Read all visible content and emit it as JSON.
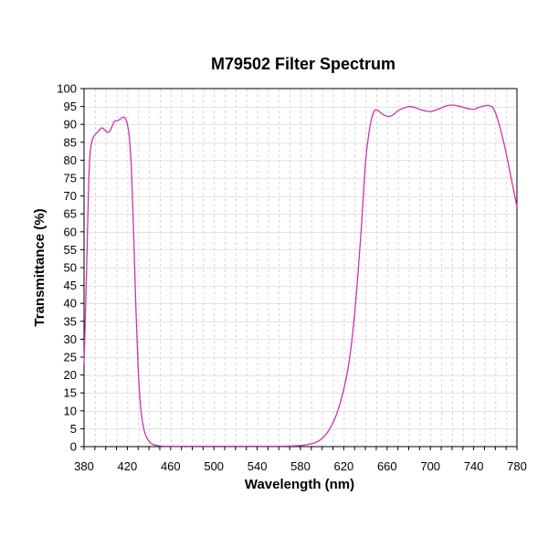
{
  "chart_data": {
    "type": "line",
    "title": "M79502 Filter Spectrum",
    "xlabel": "Wavelength (nm)",
    "ylabel": "Transmittance (%)",
    "xlim": [
      380,
      780
    ],
    "ylim": [
      0,
      100
    ],
    "xticks": [
      380,
      420,
      460,
      500,
      540,
      580,
      620,
      660,
      700,
      740,
      780
    ],
    "xminor_step": 10,
    "yticks": [
      0,
      5,
      10,
      15,
      20,
      25,
      30,
      35,
      40,
      45,
      50,
      55,
      60,
      65,
      70,
      75,
      80,
      85,
      90,
      95,
      100
    ],
    "grid": true,
    "line_color": "#cc33aa",
    "series": [
      {
        "x": [
          380,
          382,
          384,
          385,
          386,
          388,
          390,
          393,
          396,
          398,
          400,
          402,
          404,
          406,
          408,
          410,
          412,
          414,
          416,
          418,
          420,
          422,
          424,
          426,
          428,
          430,
          432,
          434,
          436,
          438,
          440,
          442,
          444,
          446,
          448,
          450,
          452,
          455,
          460,
          470,
          480,
          490,
          500,
          520,
          540,
          560,
          570,
          580,
          585,
          590,
          595,
          600,
          604,
          608,
          612,
          616,
          620,
          624,
          628,
          632,
          636,
          640,
          643,
          646,
          649,
          652,
          655,
          658,
          661,
          664,
          667,
          670,
          675,
          680,
          685,
          690,
          695,
          700,
          705,
          710,
          715,
          720,
          725,
          730,
          735,
          740,
          745,
          750,
          752,
          755,
          758,
          761,
          764,
          767,
          770,
          773,
          776,
          778,
          780
        ],
        "y": [
          23,
          45,
          70,
          79,
          83,
          86,
          87,
          88,
          89,
          88.8,
          88.2,
          87.8,
          88.2,
          89.5,
          90.8,
          91,
          91.2,
          91.6,
          92,
          91.8,
          90,
          86,
          76,
          58,
          38,
          22,
          12,
          7,
          4,
          2.5,
          1.5,
          0.9,
          0.6,
          0.4,
          0.3,
          0.2,
          0.15,
          0.1,
          0.1,
          0.1,
          0.1,
          0.1,
          0.1,
          0.1,
          0.1,
          0.1,
          0.15,
          0.3,
          0.5,
          0.8,
          1.3,
          2.3,
          3.6,
          5.5,
          8,
          11.5,
          16,
          22,
          31,
          44,
          60,
          79,
          87,
          92,
          94,
          93.8,
          93,
          92.5,
          92.2,
          92.4,
          93,
          93.8,
          94.5,
          95,
          94.8,
          94.2,
          93.8,
          93.6,
          94,
          94.6,
          95.2,
          95.4,
          95.2,
          94.8,
          94.4,
          94.2,
          94.8,
          95.2,
          95.3,
          95.2,
          94.6,
          92.5,
          89.5,
          86,
          82,
          77.5,
          73,
          70,
          67
        ]
      }
    ]
  }
}
